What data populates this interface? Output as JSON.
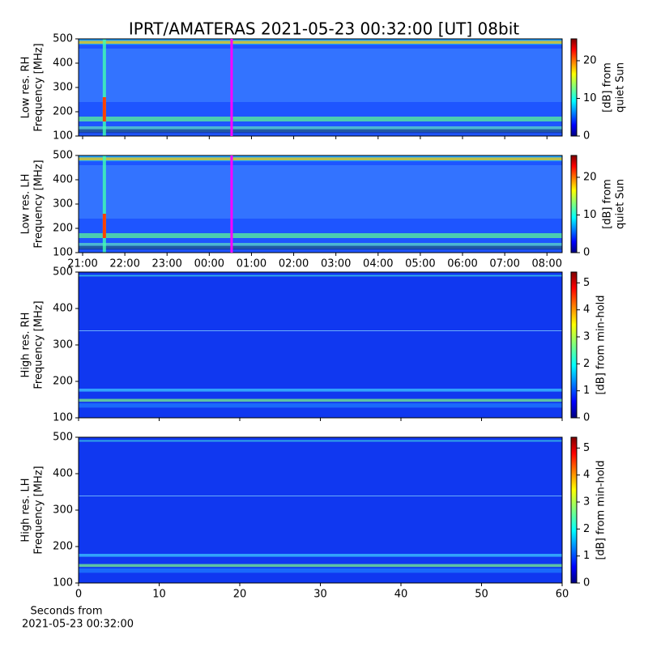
{
  "chart_data": [
    {
      "type": "heatmap",
      "title": "IPRT/AMATERAS 2021-05-23 00:32:00 [UT]   08bit",
      "ylabel": [
        "Low res. RH",
        "Frequency [MHz]"
      ],
      "xlim": [
        -0.096,
        11.36
      ],
      "xticks": [
        0,
        1,
        2,
        3,
        4,
        5,
        6,
        7,
        8,
        9,
        10,
        11
      ],
      "xtick_labels": false,
      "ylim": [
        100,
        500
      ],
      "yticks": [
        100,
        200,
        300,
        400,
        500
      ],
      "clim": [
        0,
        25.8
      ],
      "cticks": [
        0,
        10,
        20
      ],
      "colorbar_label": [
        "[dB] from",
        "quiet Sun"
      ],
      "cursor": {
        "x": 3.53,
        "color": "#ff00ff"
      },
      "style": "low"
    },
    {
      "type": "heatmap",
      "ylabel": [
        "Low res. LH",
        "Frequency [MHz]"
      ],
      "xlim": [
        -0.096,
        11.36
      ],
      "xticks": [
        {
          "value": 0,
          "label": "21:00"
        },
        {
          "value": 1,
          "label": "22:00"
        },
        {
          "value": 2,
          "label": "23:00"
        },
        {
          "value": 3,
          "label": "00:00"
        },
        {
          "value": 4,
          "label": "01:00"
        },
        {
          "value": 5,
          "label": "02:00"
        },
        {
          "value": 6,
          "label": "03:00"
        },
        {
          "value": 7,
          "label": "04:00"
        },
        {
          "value": 8,
          "label": "05:00"
        },
        {
          "value": 9,
          "label": "06:00"
        },
        {
          "value": 10,
          "label": "07:00"
        },
        {
          "value": 11,
          "label": "08:00"
        }
      ],
      "xtick_labels": true,
      "ylim": [
        100,
        500
      ],
      "yticks": [
        100,
        200,
        300,
        400,
        500
      ],
      "clim": [
        0,
        25.8
      ],
      "cticks": [
        0,
        10,
        20
      ],
      "colorbar_label": [
        "[dB] from",
        "quiet Sun"
      ],
      "cursor": {
        "x": 3.53,
        "color": "#ff00ff"
      },
      "style": "low"
    },
    {
      "type": "heatmap",
      "ylabel": [
        "High res. RH",
        "Frequency [MHz]"
      ],
      "xlim": [
        0,
        60
      ],
      "xticks": [
        0,
        10,
        20,
        30,
        40,
        50,
        60
      ],
      "xtick_labels": false,
      "ylim": [
        100,
        500
      ],
      "yticks": [
        100,
        200,
        300,
        400,
        500
      ],
      "clim": [
        0,
        5.4
      ],
      "cticks": [
        0,
        1,
        2,
        3,
        4,
        5
      ],
      "colorbar_label": [
        "[dB] from min-hold"
      ],
      "style": "high"
    },
    {
      "type": "heatmap",
      "ylabel": [
        "High res. LH",
        "Frequency [MHz]"
      ],
      "xlim": [
        0,
        60
      ],
      "xticks": [
        0,
        10,
        20,
        30,
        40,
        50,
        60
      ],
      "xtick_labels": true,
      "xlabel": [
        "Seconds from",
        "2021-05-23 00:32:00"
      ],
      "ylim": [
        100,
        500
      ],
      "yticks": [
        100,
        200,
        300,
        400,
        500
      ],
      "clim": [
        0,
        5.4
      ],
      "cticks": [
        0,
        1,
        2,
        3,
        4,
        5
      ],
      "colorbar_label": [
        "[dB] from min-hold"
      ],
      "style": "high"
    }
  ]
}
